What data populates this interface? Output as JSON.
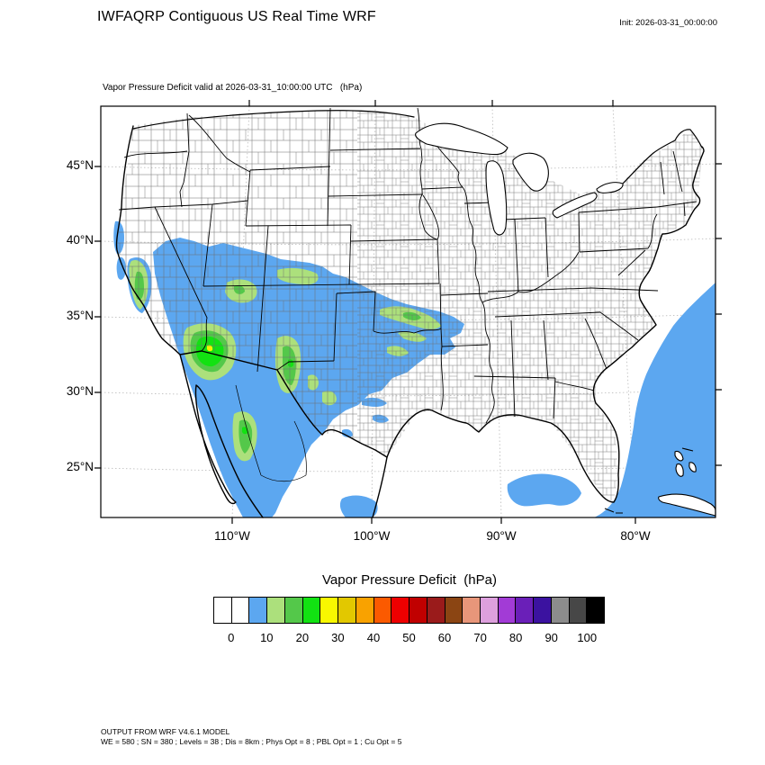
{
  "header": {
    "title": "IWFAQRP Contiguous US Real Time WRF",
    "init_label": "Init: 2026-03-31_00:00:00"
  },
  "map": {
    "subtitle": "Vapor Pressure Deficit valid at 2026-03-31_10:00:00 UTC   (hPa)",
    "lat_labels": [
      "45°N",
      "40°N",
      "35°N",
      "30°N",
      "25°N"
    ],
    "lon_labels": [
      "110°W",
      "100°W",
      "90°W",
      "80°W"
    ]
  },
  "colorbar": {
    "title": "Vapor Pressure Deficit  (hPa)",
    "tick_labels": [
      "0",
      "10",
      "20",
      "30",
      "40",
      "50",
      "60",
      "70",
      "80",
      "90",
      "100"
    ],
    "colors": [
      "#FFFFFF",
      "#FFFFFF",
      "#5CA7F0",
      "#ACE07C",
      "#54C84A",
      "#12E212",
      "#F8F800",
      "#E2C800",
      "#F9A200",
      "#FB5A00",
      "#EE0000",
      "#C00000",
      "#9A1B1B",
      "#8B4513",
      "#E8967A",
      "#DDA0DD",
      "#A23BD6",
      "#6A1FB8",
      "#3B12A0",
      "#8C8C8C",
      "#474747",
      "#000000"
    ]
  },
  "map_colors": {
    "vpd_blue": "#5CA7F0",
    "vpd_light_green": "#ACE07C",
    "vpd_green": "#54C84A",
    "vpd_bright_green": "#12E212",
    "vpd_yellow": "#F4F400"
  },
  "footer": {
    "line1": "OUTPUT FROM WRF V4.6.1 MODEL",
    "line2": "WE = 580 ; SN = 380 ; Levels = 38 ; Dis = 8km ; Phys Opt = 8 ; PBL Opt = 1 ; Cu Opt = 5"
  }
}
